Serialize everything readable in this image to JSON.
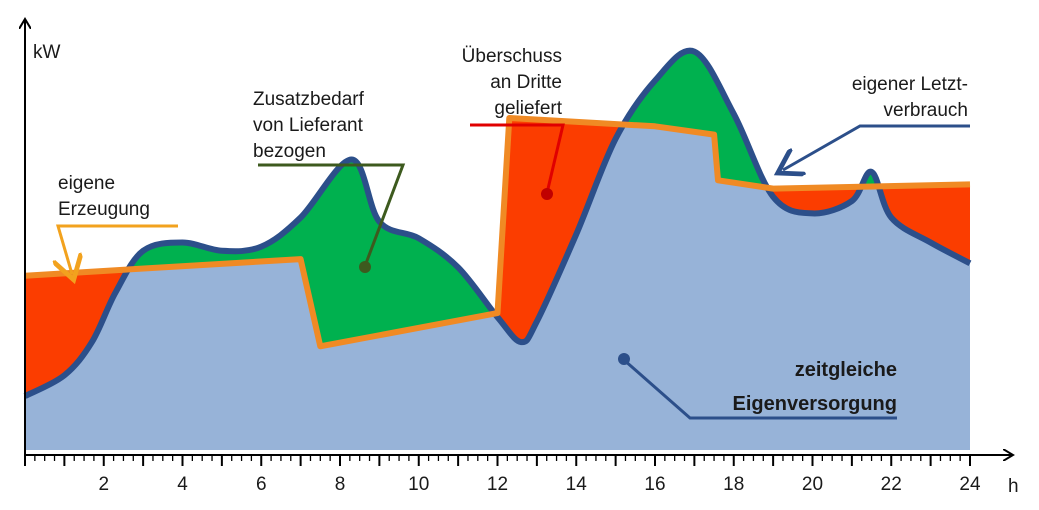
{
  "chart_data": {
    "type": "area",
    "xlabel": "h",
    "ylabel": "kW",
    "xlim": [
      0,
      24
    ],
    "ylim": [
      0,
      10
    ],
    "x_ticks": [
      "2",
      "4",
      "6",
      "8",
      "10",
      "12",
      "14",
      "16",
      "18",
      "20",
      "22",
      "24"
    ],
    "series": [
      {
        "name": "eigener Letzt-verbrauch",
        "x": [
          0,
          1,
          1.7,
          2.3,
          3,
          4,
          5,
          6,
          7,
          8.3,
          9,
          10,
          11,
          12,
          12.6,
          13,
          14,
          15,
          16,
          17,
          18,
          19,
          20,
          21,
          21.5,
          22,
          23,
          24
        ],
        "y": [
          1.3,
          1.8,
          2.6,
          3.8,
          4.8,
          5.0,
          4.8,
          4.9,
          5.6,
          7.0,
          5.5,
          5.1,
          4.4,
          3.2,
          2.6,
          3.1,
          5.2,
          7.5,
          8.9,
          9.6,
          8.1,
          6.1,
          5.7,
          6.0,
          6.7,
          5.6,
          5.0,
          4.5
        ],
        "color": "#2c4f8a"
      },
      {
        "name": "eigene Erzeugung",
        "x": [
          0,
          7,
          7.5,
          12,
          12.3,
          16,
          17.5,
          17.6,
          19,
          24
        ],
        "y": [
          4.2,
          4.6,
          2.5,
          3.3,
          8.0,
          7.8,
          7.6,
          6.5,
          6.3,
          6.4
        ],
        "color": "#f08a24"
      }
    ]
  },
  "labels": {
    "eigene_erzeugung": [
      "eigene",
      "Erzeugung"
    ],
    "zusatzbedarf": [
      "Zusatzbedarf",
      "von Lieferant",
      "bezogen"
    ],
    "ueberschuss": [
      "Überschuss",
      "an Dritte",
      "geliefert"
    ],
    "letztverbrauch": [
      "eigener Letzt-",
      "verbrauch"
    ],
    "eigenversorgung": [
      "zeitgleiche",
      "Eigenversorgung"
    ]
  },
  "colors": {
    "consumption_fill": "#97b3d8",
    "consumption_line": "#2c4f8a",
    "generation_line": "#f08a24",
    "surplus_fill": "#fb3d00",
    "deficit_fill": "#00b14f",
    "deficit_label_line": "#3d5a1e",
    "surplus_label_line": "#e00000",
    "generation_label_line": "#f2a21e"
  }
}
